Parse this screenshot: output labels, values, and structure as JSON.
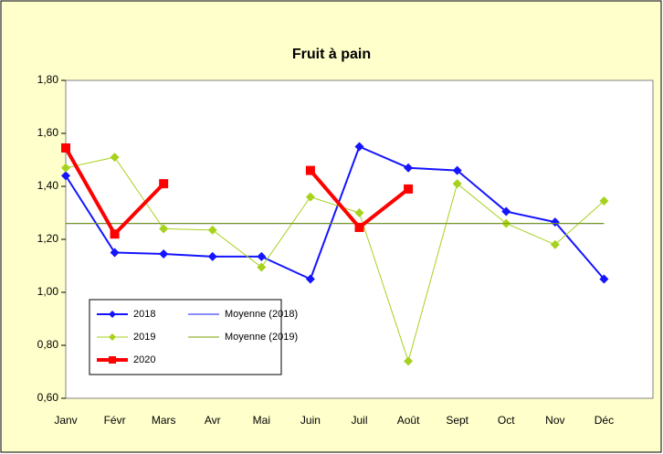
{
  "chart_data": {
    "type": "line",
    "title": "Fruit à pain",
    "categories": [
      "Janv",
      "Févr",
      "Mars",
      "Avr",
      "Mai",
      "Juin",
      "Juil",
      "Août",
      "Sept",
      "Oct",
      "Nov",
      "Déc"
    ],
    "series": [
      {
        "name": "2018",
        "color": "#1414ff",
        "marker": "diamond",
        "width": 2,
        "values": [
          1.44,
          1.15,
          1.145,
          1.135,
          1.135,
          1.05,
          1.55,
          1.47,
          1.46,
          1.305,
          1.265,
          1.05
        ]
      },
      {
        "name": "Moyenne (2018)",
        "color": "#1414ff",
        "marker": "none",
        "width": 1,
        "values": [
          1.26,
          1.26,
          1.26,
          1.26,
          1.26,
          1.26,
          1.26,
          1.26,
          1.26,
          1.26,
          1.26,
          1.26
        ]
      },
      {
        "name": "2019",
        "color": "#a6d21e",
        "marker": "diamond",
        "width": 1,
        "values": [
          1.47,
          1.51,
          1.24,
          1.235,
          1.095,
          1.36,
          1.3,
          0.74,
          1.41,
          1.26,
          1.18,
          1.345
        ]
      },
      {
        "name": "Moyenne (2019)",
        "color": "#7aa000",
        "marker": "none",
        "width": 1,
        "values": [
          1.26,
          1.26,
          1.26,
          1.26,
          1.26,
          1.26,
          1.26,
          1.26,
          1.26,
          1.26,
          1.26,
          1.26
        ]
      },
      {
        "name": "2020",
        "color": "#ff0000",
        "marker": "square",
        "width": 4,
        "values": [
          1.545,
          1.22,
          1.41,
          null,
          null,
          1.46,
          1.245,
          1.39,
          null,
          null,
          null,
          null
        ]
      }
    ],
    "ylim": [
      0.6,
      1.8
    ],
    "yticks": [
      {
        "value": 0.6,
        "label": "0,60"
      },
      {
        "value": 0.8,
        "label": "0,80"
      },
      {
        "value": 1.0,
        "label": "1,00"
      },
      {
        "value": 1.2,
        "label": "1,20"
      },
      {
        "value": 1.4,
        "label": "1,40"
      },
      {
        "value": 1.6,
        "label": "1,60"
      },
      {
        "value": 1.8,
        "label": "1,80"
      }
    ],
    "grid": false,
    "legend": "lower left"
  }
}
